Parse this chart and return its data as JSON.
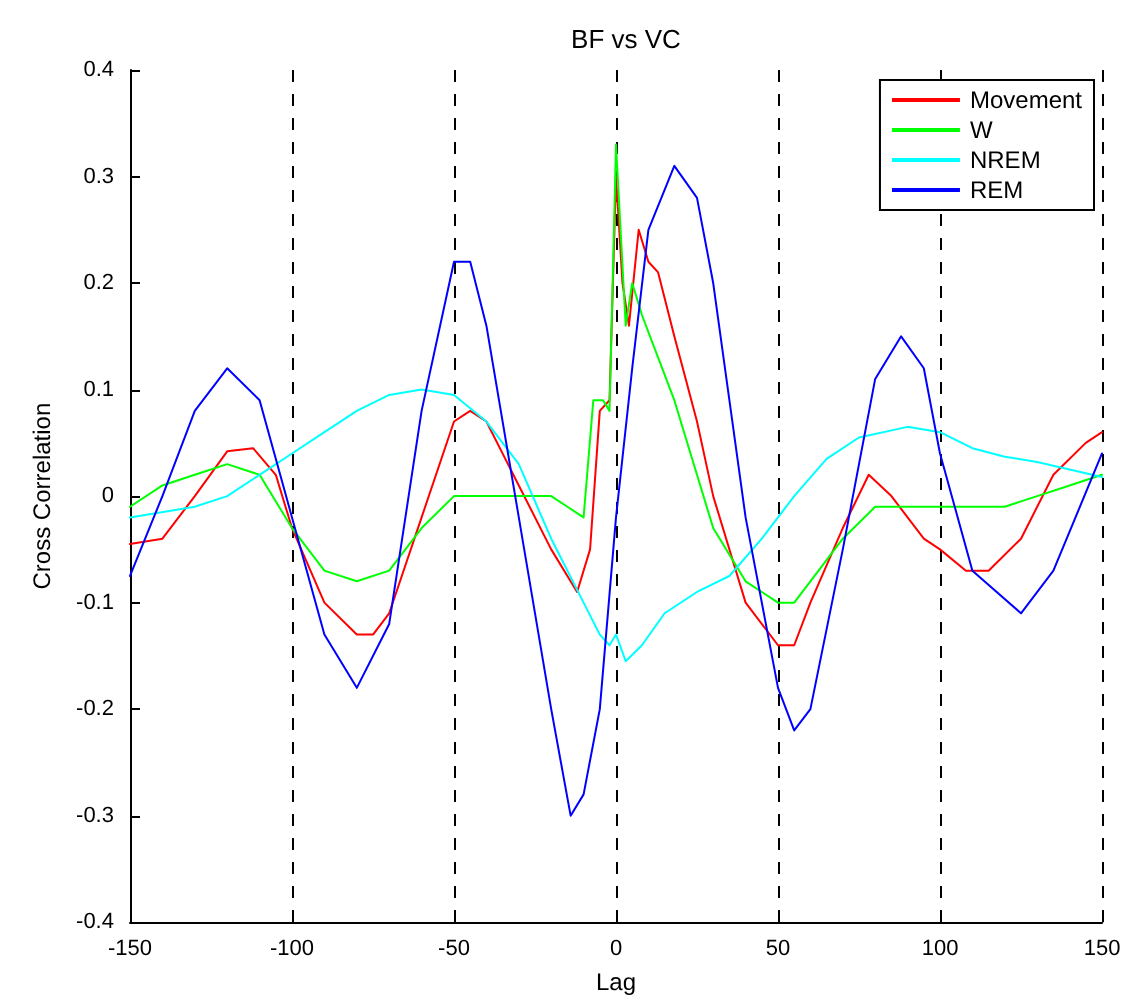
{
  "chart_data": {
    "type": "line",
    "title": "BF vs VC",
    "xlabel": "Lag",
    "ylabel": "Cross Correlation",
    "xlim": [
      -150,
      150
    ],
    "xticks": [
      -150,
      -100,
      -50,
      0,
      50,
      100,
      150
    ],
    "ylim": [
      -0.4,
      0.4
    ],
    "yticks": [
      -0.4,
      -0.3,
      -0.2,
      -0.1,
      0,
      0.1,
      0.2,
      0.3,
      0.4
    ],
    "grid": "x",
    "legend": "top right",
    "marker": "none",
    "line_style": "solid",
    "series": [
      {
        "name": "Movement",
        "color": "#ff0000",
        "x": [
          -150,
          -140,
          -130,
          -120,
          -112,
          -105,
          -100,
          -90,
          -80,
          -75,
          -70,
          -60,
          -50,
          -45,
          -40,
          -30,
          -20,
          -12,
          -8,
          -5,
          -2,
          0,
          2,
          4,
          7,
          10,
          13,
          18,
          25,
          30,
          40,
          50,
          55,
          60,
          70,
          78,
          85,
          95,
          100,
          108,
          115,
          125,
          135,
          145,
          150
        ],
        "values": [
          -0.045,
          -0.04,
          0.0,
          0.042,
          0.045,
          0.02,
          -0.03,
          -0.1,
          -0.13,
          -0.13,
          -0.11,
          -0.02,
          0.07,
          0.08,
          0.07,
          0.01,
          -0.05,
          -0.09,
          -0.05,
          0.08,
          0.09,
          0.3,
          0.2,
          0.16,
          0.25,
          0.22,
          0.21,
          0.15,
          0.07,
          0.0,
          -0.1,
          -0.14,
          -0.14,
          -0.1,
          -0.03,
          0.02,
          0.0,
          -0.04,
          -0.05,
          -0.07,
          -0.07,
          -0.04,
          0.02,
          0.05,
          0.06
        ]
      },
      {
        "name": "W",
        "color": "#00ff00",
        "x": [
          -150,
          -140,
          -130,
          -120,
          -110,
          -100,
          -90,
          -80,
          -70,
          -60,
          -50,
          -40,
          -30,
          -20,
          -15,
          -10,
          -7,
          -4,
          -2,
          0,
          3,
          5,
          8,
          13,
          18,
          25,
          30,
          40,
          50,
          55,
          60,
          70,
          80,
          90,
          100,
          110,
          120,
          130,
          140,
          150
        ],
        "values": [
          -0.01,
          0.01,
          0.02,
          0.03,
          0.02,
          -0.03,
          -0.07,
          -0.08,
          -0.07,
          -0.03,
          0.0,
          0.0,
          0.0,
          0.0,
          -0.01,
          -0.02,
          0.09,
          0.09,
          0.08,
          0.33,
          0.16,
          0.2,
          0.17,
          0.13,
          0.09,
          0.02,
          -0.03,
          -0.08,
          -0.1,
          -0.1,
          -0.08,
          -0.04,
          -0.01,
          -0.01,
          -0.01,
          -0.01,
          -0.01,
          0.0,
          0.01,
          0.02
        ]
      },
      {
        "name": "NREM",
        "color": "#00ffff",
        "x": [
          -150,
          -130,
          -120,
          -110,
          -100,
          -90,
          -80,
          -70,
          -60,
          -50,
          -40,
          -30,
          -20,
          -10,
          -5,
          -2,
          0,
          3,
          8,
          15,
          25,
          35,
          45,
          55,
          65,
          75,
          90,
          100,
          110,
          120,
          130,
          150
        ],
        "values": [
          -0.02,
          -0.01,
          0.0,
          0.02,
          0.04,
          0.06,
          0.08,
          0.095,
          0.1,
          0.095,
          0.07,
          0.03,
          -0.04,
          -0.1,
          -0.13,
          -0.14,
          -0.13,
          -0.155,
          -0.14,
          -0.11,
          -0.09,
          -0.075,
          -0.04,
          0.0,
          0.035,
          0.055,
          0.065,
          0.06,
          0.045,
          0.037,
          0.032,
          0.018
        ]
      },
      {
        "name": "REM",
        "color": "#0000ff",
        "x": [
          -150,
          -140,
          -130,
          -120,
          -110,
          -100,
          -90,
          -80,
          -70,
          -60,
          -50,
          -45,
          -40,
          -30,
          -20,
          -14,
          -10,
          -5,
          0,
          5,
          10,
          18,
          25,
          30,
          40,
          50,
          55,
          60,
          70,
          80,
          88,
          95,
          100,
          110,
          125,
          135,
          150
        ],
        "values": [
          -0.075,
          0.0,
          0.08,
          0.12,
          0.09,
          -0.02,
          -0.13,
          -0.18,
          -0.12,
          0.08,
          0.22,
          0.22,
          0.16,
          -0.02,
          -0.2,
          -0.3,
          -0.28,
          -0.2,
          -0.02,
          0.12,
          0.25,
          0.31,
          0.28,
          0.2,
          -0.02,
          -0.18,
          -0.22,
          -0.2,
          -0.05,
          0.11,
          0.15,
          0.12,
          0.04,
          -0.07,
          -0.11,
          -0.07,
          0.04
        ]
      }
    ]
  }
}
